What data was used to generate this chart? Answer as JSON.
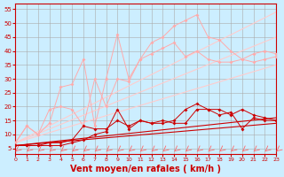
{
  "background_color": "#cceeff",
  "grid_color": "#aaaaaa",
  "xlabel": "Vent moyen/en rafales ( km/h )",
  "xlabel_color": "#cc0000",
  "xlabel_fontsize": 7,
  "xtick_color": "#cc0000",
  "ytick_color": "#cc0000",
  "ylim": [
    3,
    57
  ],
  "xlim": [
    0,
    23
  ],
  "yticks": [
    5,
    10,
    15,
    20,
    25,
    30,
    35,
    40,
    45,
    50,
    55
  ],
  "xticks": [
    0,
    1,
    2,
    3,
    4,
    5,
    6,
    7,
    8,
    9,
    10,
    11,
    12,
    13,
    14,
    15,
    16,
    17,
    18,
    19,
    20,
    21,
    22,
    23
  ],
  "arrow_color": "#ff6666",
  "line1": {
    "color": "#ffaaaa",
    "x": [
      0,
      1,
      2,
      3,
      4,
      5,
      6,
      7,
      8,
      9,
      10,
      11,
      12,
      13,
      14,
      15,
      16,
      17,
      18,
      19,
      20,
      21,
      22,
      23
    ],
    "y": [
      7,
      13,
      10,
      14,
      27,
      28,
      37,
      13,
      30,
      46,
      30,
      37,
      43,
      45,
      49,
      51,
      53,
      45,
      44,
      40,
      37,
      39,
      40,
      39
    ]
  },
  "line2": {
    "color": "#ffaaaa",
    "x": [
      0,
      1,
      2,
      3,
      4,
      5,
      6,
      7,
      8,
      9,
      10,
      11,
      12,
      13,
      14,
      15,
      16,
      17,
      18,
      19,
      20,
      21,
      22,
      23
    ],
    "y": [
      7,
      13,
      10,
      19,
      20,
      19,
      13,
      30,
      20,
      30,
      29,
      37,
      39,
      41,
      43,
      38,
      40,
      37,
      36,
      36,
      37,
      36,
      37,
      38
    ]
  },
  "slope1": {
    "color": "#ffcccc",
    "x": [
      0,
      23
    ],
    "y": [
      7,
      54
    ]
  },
  "slope2": {
    "color": "#ffcccc",
    "x": [
      0,
      23
    ],
    "y": [
      7,
      45
    ]
  },
  "slope3": {
    "color": "#ffcccc",
    "x": [
      0,
      23
    ],
    "y": [
      7,
      35
    ]
  },
  "line3": {
    "color": "#cc0000",
    "x": [
      0,
      1,
      2,
      3,
      4,
      5,
      6,
      7,
      8,
      9,
      10,
      11,
      12,
      13,
      14,
      15,
      16,
      17,
      18,
      19,
      20,
      21,
      22,
      23
    ],
    "y": [
      6,
      6,
      6,
      6,
      6,
      7,
      8,
      10,
      11,
      19,
      12,
      15,
      14,
      14,
      15,
      19,
      21,
      19,
      17,
      18,
      12,
      16,
      15,
      15
    ]
  },
  "line4": {
    "color": "#cc0000",
    "x": [
      0,
      1,
      2,
      3,
      4,
      5,
      6,
      7,
      8,
      9,
      10,
      11,
      12,
      13,
      14,
      15,
      16,
      17,
      18,
      19,
      20,
      21,
      22,
      23
    ],
    "y": [
      6,
      6,
      6,
      7,
      7,
      8,
      13,
      12,
      12,
      15,
      13,
      15,
      14,
      15,
      14,
      14,
      19,
      19,
      19,
      17,
      19,
      17,
      16,
      15
    ]
  },
  "slope4": {
    "color": "#cc0000",
    "x": [
      0,
      23
    ],
    "y": [
      6,
      16
    ]
  },
  "slope5": {
    "color": "#cc0000",
    "x": [
      0,
      23
    ],
    "y": [
      6,
      14
    ]
  }
}
